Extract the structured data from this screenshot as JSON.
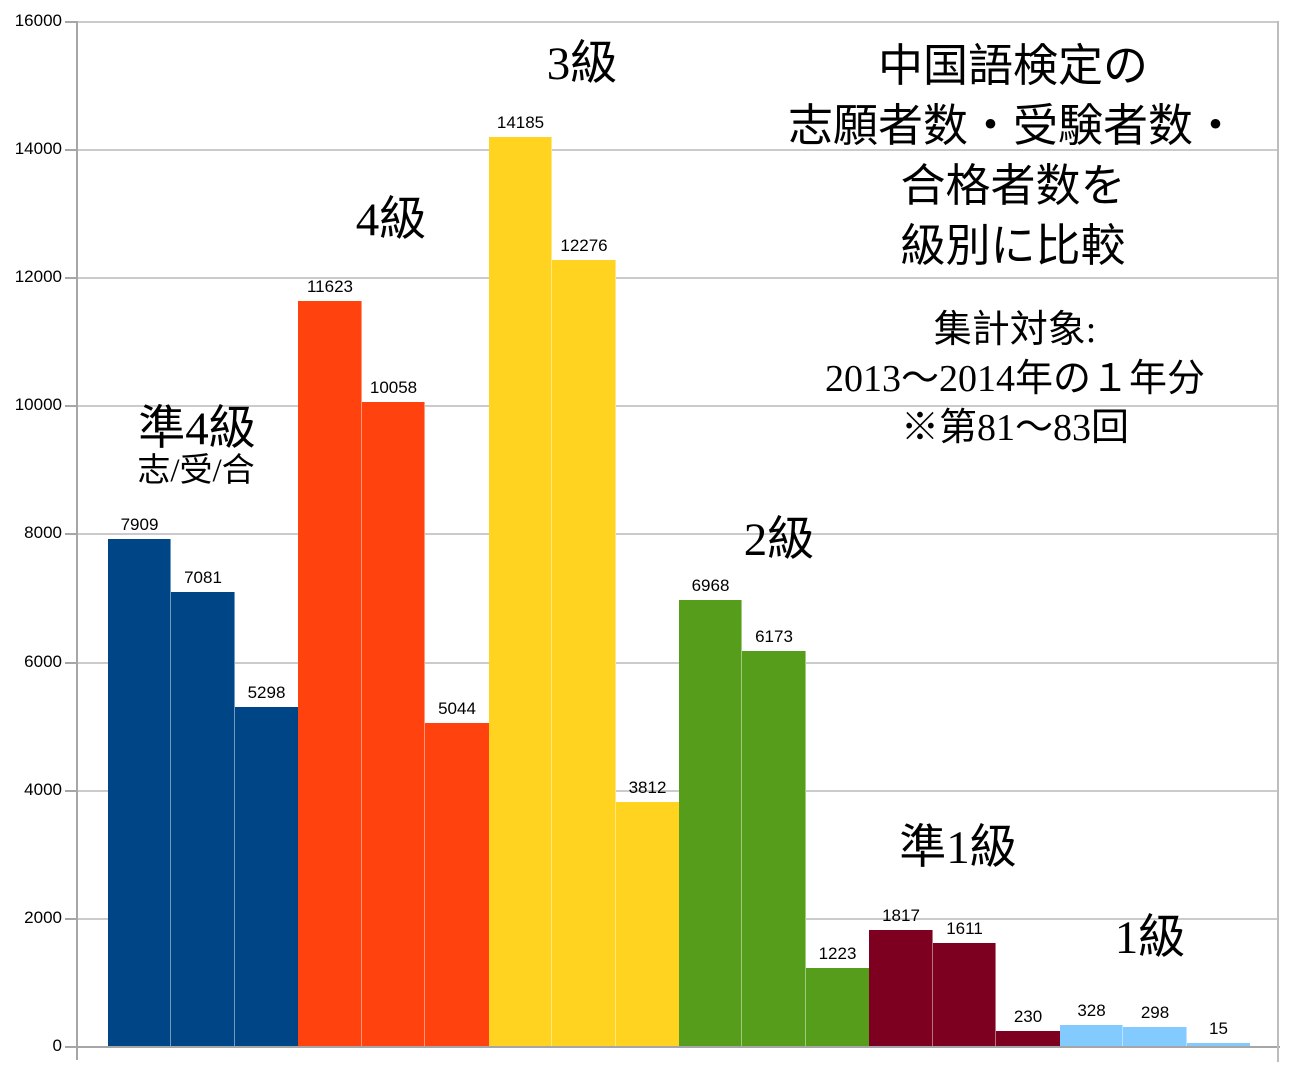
{
  "chart_data": {
    "type": "bar",
    "title_lines": [
      "中国語検定の",
      "志願者数・受験者数・",
      "合格者数を",
      "級別に比較"
    ],
    "subtitle_lines": [
      "集計対象:",
      "2013〜2014年の１年分",
      "※第81〜83回"
    ],
    "series_abbrev_label": "志/受/合",
    "series_names": [
      "志願者数",
      "受験者数",
      "合格者数"
    ],
    "groups": [
      {
        "label": "準4級",
        "color": "#004586",
        "values": [
          7909,
          7081,
          5298
        ]
      },
      {
        "label": "4級",
        "color": "#FF420E",
        "values": [
          11623,
          10058,
          5044
        ]
      },
      {
        "label": "3級",
        "color": "#FFD320",
        "values": [
          14185,
          12276,
          3812
        ]
      },
      {
        "label": "2級",
        "color": "#579D1C",
        "values": [
          6968,
          6173,
          1223
        ]
      },
      {
        "label": "準1級",
        "color": "#7E0021",
        "values": [
          1817,
          1611,
          230
        ]
      },
      {
        "label": "1級",
        "color": "#83CAFF",
        "values": [
          328,
          298,
          15
        ]
      }
    ],
    "ylim": [
      0,
      16000
    ],
    "ytick_step": 2000,
    "yticks": [
      0,
      2000,
      4000,
      6000,
      8000,
      10000,
      12000,
      14000,
      16000
    ],
    "grid": "horizontal",
    "legend_position": "none",
    "axis_color": "#a6a6a6",
    "gridline_color": "#cbcbcb"
  }
}
